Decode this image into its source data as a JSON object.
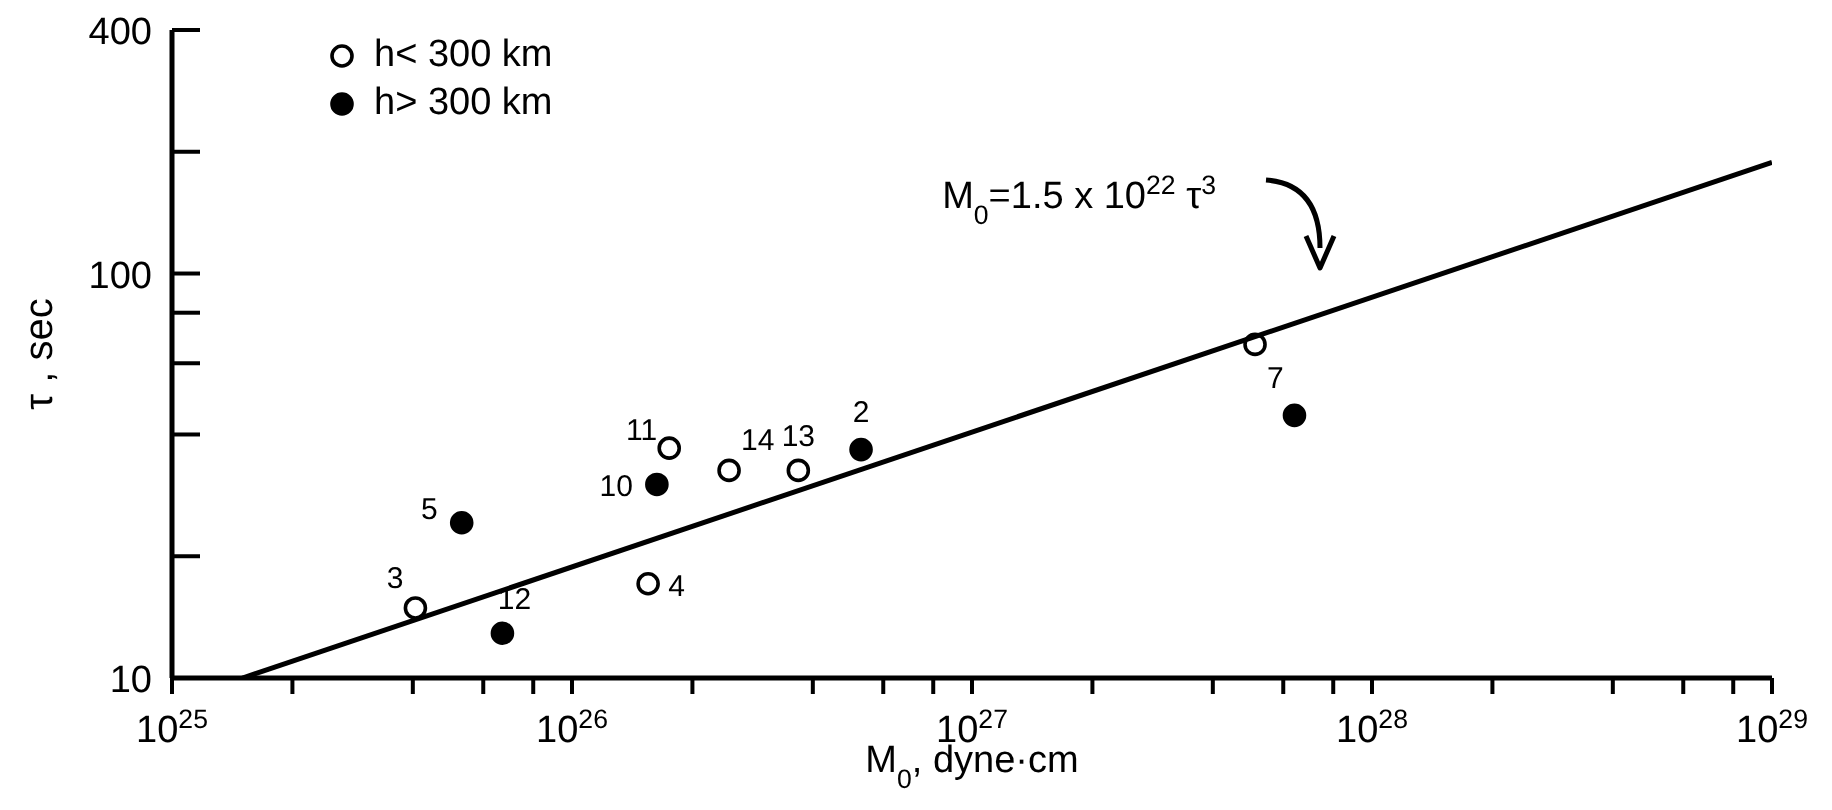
{
  "chart_data": {
    "type": "scatter",
    "xlabel": "M$_{0}$, dyne·cm",
    "ylabel": "τ , sec",
    "log": "xy",
    "legend": "top left",
    "marker": "circle",
    "xlim": [
      1e+25,
      1e+29
    ],
    "ylim": [
      10,
      400
    ],
    "xticks": [
      {
        "value": 1e+25,
        "label": "10$^{25}$"
      },
      {
        "value": 2e+25,
        "label": null
      },
      {
        "value": 4e+25,
        "label": null
      },
      {
        "value": 6e+25,
        "label": null
      },
      {
        "value": 8e+25,
        "label": null
      },
      {
        "value": 1e+26,
        "label": "10$^{26}$"
      },
      {
        "value": 2e+26,
        "label": null
      },
      {
        "value": 4e+26,
        "label": null
      },
      {
        "value": 6e+26,
        "label": null
      },
      {
        "value": 8e+26,
        "label": null
      },
      {
        "value": 1e+27,
        "label": "10$^{27}$"
      },
      {
        "value": 2e+27,
        "label": null
      },
      {
        "value": 4e+27,
        "label": null
      },
      {
        "value": 6e+27,
        "label": null
      },
      {
        "value": 8e+27,
        "label": null
      },
      {
        "value": 1e+28,
        "label": "10$^{28}$"
      },
      {
        "value": 2e+28,
        "label": null
      },
      {
        "value": 4e+28,
        "label": null
      },
      {
        "value": 6e+28,
        "label": null
      },
      {
        "value": 8e+28,
        "label": null
      },
      {
        "value": 1e+29,
        "label": "10$^{29}$"
      }
    ],
    "yticks": [
      10,
      {
        "value": 20,
        "label": null
      },
      {
        "value": 40,
        "label": null
      },
      {
        "value": 60,
        "label": null
      },
      {
        "value": 80,
        "label": null
      },
      100,
      {
        "value": 200,
        "label": null
      },
      400
    ],
    "series": [
      {
        "name": "h< 300 km",
        "color": "#ffffff",
        "x": [
          4.06e+25,
          1.55e+26,
          1.75e+26,
          2.47e+26,
          3.68e+26,
          5.1e+27
        ],
        "values": [
          14.9,
          17.1,
          37,
          32.6,
          32.6,
          66.8
        ]
      },
      {
        "name": "h> 300 km",
        "color": "#000000",
        "x": [
          6.7e+25,
          5.3e+25,
          1.63e+26,
          5.28e+26,
          6.4e+27
        ],
        "values": [
          12.9,
          24.2,
          30.1,
          36.7,
          44.6
        ]
      },
      {
        "type": "line",
        "color": "#000000",
        "marker": "none",
        "x": [
          1.5e+25,
          1e+29
        ],
        "values": [
          10,
          188.2
        ]
      }
    ],
    "annotations": [
      "M$_{0}$=1.5 x 10$^{22}$ τ$^{3}$",
      {
        "text": "3",
        "x": 4.06e+25,
        "y": 14.9
      },
      {
        "text": "4",
        "x": 1.55e+26,
        "y": 17.1
      },
      {
        "text": "11",
        "x": 1.75e+26,
        "y": 37
      },
      {
        "text": "14",
        "x": 2.47e+26,
        "y": 32.6
      },
      {
        "text": "13",
        "x": 3.68e+26,
        "y": 32.6
      },
      {
        "text": "7",
        "x": 5.1e+27,
        "y": 66.8
      },
      {
        "text": "12",
        "x": 6.7e+25,
        "y": 12.9
      },
      {
        "text": "5",
        "x": 5.3e+25,
        "y": 24.2
      },
      {
        "text": "10",
        "x": 1.63e+26,
        "y": 30.1
      },
      {
        "text": "2",
        "x": 5.28e+26,
        "y": 36.7
      }
    ]
  }
}
